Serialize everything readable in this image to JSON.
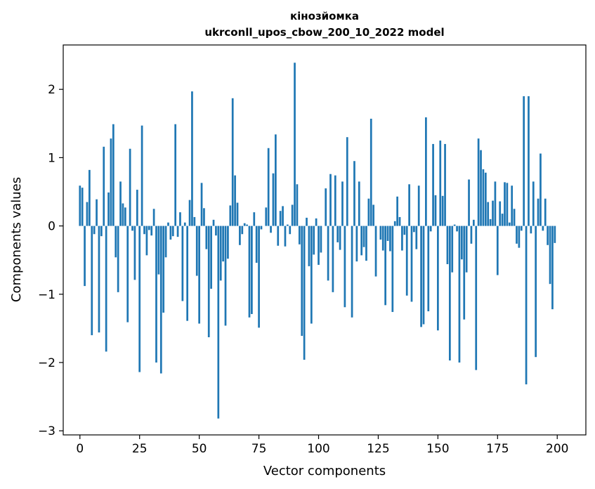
{
  "chart_data": {
    "type": "bar",
    "title_line1": "кінозйомка",
    "title_line2": "ukrconll_upos_cbow_200_10_2022 model",
    "xlabel": "Vector components",
    "ylabel": "Components values",
    "xlim": [
      -7,
      212
    ],
    "ylim": [
      -3.06,
      2.65
    ],
    "xticks": [
      0,
      25,
      50,
      75,
      100,
      125,
      150,
      175,
      200
    ],
    "yticks": [
      -3,
      -2,
      -1,
      0,
      1,
      2
    ],
    "ytick_labels": [
      "−3",
      "−2",
      "−1",
      "0",
      "1",
      "2"
    ],
    "bar_color": "#1f77b4",
    "grid": false,
    "values": [
      0.59,
      0.56,
      -0.88,
      0.35,
      0.82,
      -1.6,
      -0.12,
      0.39,
      -1.56,
      -0.15,
      1.16,
      -1.84,
      0.49,
      1.28,
      1.49,
      -0.46,
      -0.97,
      0.65,
      0.33,
      0.27,
      -1.41,
      1.13,
      -0.07,
      -0.79,
      0.53,
      -2.14,
      1.47,
      -0.12,
      -0.43,
      -0.06,
      -0.14,
      0.25,
      -2.0,
      -0.71,
      -2.16,
      -1.27,
      -0.46,
      0.05,
      -0.2,
      -0.15,
      1.49,
      -0.16,
      0.2,
      -1.1,
      0.05,
      -1.39,
      0.38,
      1.97,
      0.13,
      -0.73,
      -1.43,
      0.63,
      0.26,
      -0.34,
      -1.63,
      -0.92,
      0.09,
      -0.14,
      -2.82,
      -0.8,
      -0.52,
      -1.46,
      -0.48,
      0.3,
      1.87,
      0.74,
      0.34,
      -0.28,
      -0.12,
      0.04,
      0.02,
      -1.34,
      -1.29,
      0.2,
      -0.54,
      -1.49,
      -0.05,
      0.0,
      0.27,
      1.14,
      -0.1,
      0.77,
      1.34,
      -0.29,
      0.22,
      0.29,
      -0.3,
      0.02,
      -0.12,
      0.31,
      2.39,
      0.61,
      -0.27,
      -1.61,
      -1.96,
      0.12,
      -0.59,
      -1.43,
      -0.42,
      0.11,
      -0.57,
      -0.39,
      0.0,
      0.55,
      -0.8,
      0.76,
      -0.97,
      0.74,
      -0.24,
      -0.35,
      0.65,
      -1.19,
      1.3,
      0.0,
      -1.34,
      0.95,
      -0.52,
      0.65,
      -0.43,
      -0.31,
      -0.51,
      0.4,
      1.57,
      0.31,
      -0.74,
      0.0,
      -0.2,
      -0.36,
      -1.16,
      -0.22,
      -0.37,
      -1.26,
      0.07,
      0.43,
      0.13,
      -0.36,
      -0.13,
      -1.02,
      0.61,
      -1.11,
      -0.09,
      -0.34,
      0.59,
      -1.48,
      -1.44,
      1.59,
      -1.25,
      -0.08,
      1.2,
      0.45,
      -1.53,
      1.25,
      0.44,
      1.2,
      -0.56,
      -1.97,
      -0.68,
      0.02,
      -0.08,
      -2.0,
      -0.49,
      -1.37,
      -0.68,
      0.68,
      -0.26,
      0.09,
      -2.11,
      1.28,
      1.11,
      0.83,
      0.78,
      0.35,
      0.1,
      0.37,
      0.65,
      -0.72,
      0.36,
      0.18,
      0.64,
      0.63,
      0.05,
      0.59,
      0.25,
      -0.26,
      -0.32,
      -0.07,
      1.9,
      -2.32,
      1.9,
      -0.11,
      0.65,
      -1.92,
      0.4,
      1.06,
      -0.07,
      0.4,
      -0.28,
      -0.85,
      -1.22,
      -0.25
    ]
  }
}
